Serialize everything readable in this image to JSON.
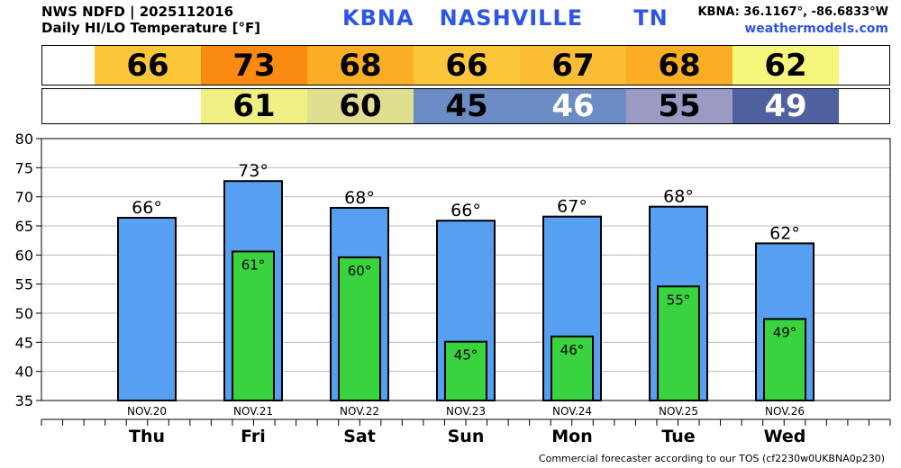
{
  "header": {
    "line1": "NWS NDFD | 2025112016",
    "line2": "Daily HI/LO Temperature [°F]",
    "station": "KBNA",
    "city": "NASHVILLE",
    "state": "TN",
    "coords": "KBNA: 36.1167°, -86.6833°W",
    "site": "weathermodels.com"
  },
  "strips": {
    "hi": [
      {
        "value": "66",
        "color": "#fbc63a"
      },
      {
        "value": "73",
        "color": "#fb8a12"
      },
      {
        "value": "68",
        "color": "#fbad26"
      },
      {
        "value": "66",
        "color": "#fbc63a"
      },
      {
        "value": "67",
        "color": "#fbbd33"
      },
      {
        "value": "68",
        "color": "#fbad26"
      },
      {
        "value": "62",
        "color": "#f6f57c"
      }
    ],
    "lo": [
      {
        "value": "",
        "color": "#ffffff",
        "text_color": "#000000"
      },
      {
        "value": "61",
        "color": "#f0ef83",
        "text_color": "#000000"
      },
      {
        "value": "60",
        "color": "#e0df8f",
        "text_color": "#000000"
      },
      {
        "value": "45",
        "color": "#6c8cc5",
        "text_color": "#000000"
      },
      {
        "value": "46",
        "color": "#6c8cc5",
        "text_color": "#ffffff"
      },
      {
        "value": "55",
        "color": "#9a9ac3",
        "text_color": "#000000"
      },
      {
        "value": "49",
        "color": "#5061a1",
        "text_color": "#ffffff"
      }
    ]
  },
  "chart_data": {
    "type": "bar",
    "categories": [
      "Thu",
      "Fri",
      "Sat",
      "Sun",
      "Mon",
      "Tue",
      "Wed"
    ],
    "dates": [
      "NOV.20",
      "NOV.21",
      "NOV.22",
      "NOV.23",
      "NOV.24",
      "NOV.25",
      "NOV.26"
    ],
    "series": [
      {
        "values": [
          66.4,
          72.7,
          68.1,
          65.9,
          66.6,
          68.3,
          62.0
        ],
        "labels": [
          "66°",
          "73°",
          "68°",
          "66°",
          "67°",
          "68°",
          "62°"
        ],
        "color": "#579ff0"
      },
      {
        "values": [
          null,
          60.6,
          59.6,
          45.1,
          46.0,
          54.6,
          49.0
        ],
        "labels": [
          "",
          "61°",
          "60°",
          "45°",
          "46°",
          "55°",
          "49°"
        ],
        "color": "#38d33f"
      }
    ],
    "ylim": [
      35,
      80
    ],
    "yticks": [
      35,
      40,
      45,
      50,
      55,
      60,
      65,
      70,
      75,
      80
    ],
    "grid": true
  },
  "footer": "Commercial forecaster according to our TOS (cf2230w0UKBNA0p230)"
}
